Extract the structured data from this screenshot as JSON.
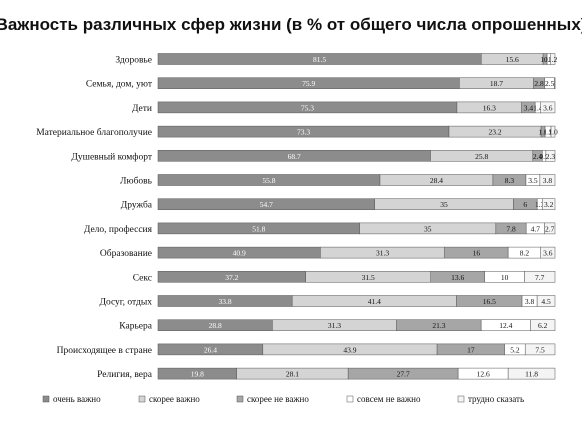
{
  "chart_data": {
    "type": "bar",
    "orientation": "horizontal",
    "stacked": true,
    "title": "Важность различных сфер жизни (в % от общего числа опрошенных)",
    "xlabel": "",
    "ylabel": "",
    "xlim": [
      0,
      100
    ],
    "grid": false,
    "legend_position": "bottom",
    "categories": [
      "Здоровье",
      "Семья, дом, уют",
      "Дети",
      "Материальное благополучие",
      "Душевный комфорт",
      "Любовь",
      "Дружба",
      "Дело, профессия",
      "Образование",
      "Секс",
      "Досуг, отдых",
      "Карьера",
      "Происходящее в стране",
      "Религия, вера"
    ],
    "series": [
      {
        "name": "очень важно",
        "color": "#8c8c8c",
        "values": [
          81.5,
          75.9,
          75.3,
          73.3,
          68.7,
          55.8,
          54.7,
          51.8,
          40.9,
          37.2,
          33.8,
          28.8,
          26.4,
          19.8
        ]
      },
      {
        "name": "скорее важно",
        "color": "#d4d4d4",
        "values": [
          15.6,
          18.7,
          16.3,
          23.2,
          25.8,
          28.4,
          35,
          35,
          31.3,
          31.5,
          41.4,
          31.3,
          43.9,
          28.1
        ]
      },
      {
        "name": "скорее не важно",
        "color": "#a6a6a6",
        "values": [
          1,
          2.8,
          3.4,
          1,
          2.4,
          8.3,
          6,
          7.8,
          16,
          13.6,
          16.5,
          21.3,
          17,
          27.7
        ]
      },
      {
        "name": "совсем не важно",
        "color": "#ffffff",
        "values": [
          0.8,
          2.5,
          1.4,
          1.5,
          0.9,
          3.5,
          1.3,
          4.7,
          8.2,
          10,
          3.8,
          12.4,
          5.2,
          12.6
        ]
      },
      {
        "name": "трудно сказать",
        "color": "#f4f4f4",
        "values": [
          1.2,
          0.1,
          3.6,
          1,
          2.3,
          3.8,
          3.2,
          2.7,
          3.6,
          7.7,
          4.5,
          6.2,
          7.5,
          11.8
        ]
      }
    ],
    "data_labels": [
      [
        "81.5",
        "15.6",
        "1.0",
        "0.8",
        "1.2"
      ],
      [
        "75.9",
        "18.7",
        "2.8",
        "2.5",
        ""
      ],
      [
        "75.3",
        "16.3",
        "3.4",
        "1.4",
        "3.6"
      ],
      [
        "73.3",
        "23.2",
        "1.0",
        "1.5",
        "1.0"
      ],
      [
        "68.7",
        "25.8",
        "2.4",
        "0.9",
        "2.3"
      ],
      [
        "55.8",
        "28.4",
        "8.3",
        "3.5",
        "3.8"
      ],
      [
        "54.7",
        "35",
        "6",
        "1.3",
        "3.2"
      ],
      [
        "51.8",
        "35",
        "7.8",
        "4.7",
        "2.7"
      ],
      [
        "40.9",
        "31.3",
        "16",
        "8.2",
        "3.6"
      ],
      [
        "37.2",
        "31.5",
        "13.6",
        "10",
        "7.7"
      ],
      [
        "33.8",
        "41.4",
        "16.5",
        "3.8",
        "4.5"
      ],
      [
        "28.8",
        "31.3",
        "21.3",
        "12.4",
        "6.2"
      ],
      [
        "26.4",
        "43.9",
        "17",
        "5.2",
        "7.5"
      ],
      [
        "19.8",
        "28.1",
        "27.7",
        "12.6",
        "11.8"
      ]
    ]
  }
}
